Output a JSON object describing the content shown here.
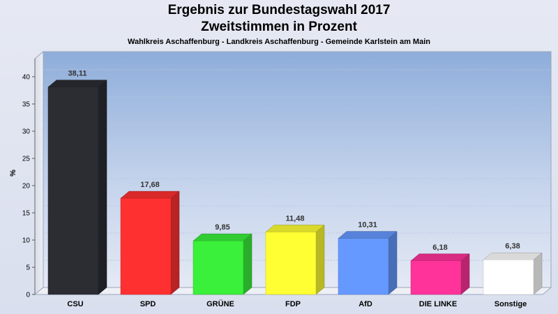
{
  "title_line1": "Ergebnis zur Bundestagswahl 2017",
  "title_line2": "Zweitstimmen in Prozent",
  "subtitle": "Wahlkreis Aschaffenburg - Landkreis Aschaffenburg - Gemeinde Karlstein am Main",
  "chart_data": {
    "type": "bar",
    "ylabel": "%",
    "ylim": [
      0,
      40
    ],
    "yticks": [
      0,
      5,
      10,
      15,
      20,
      25,
      30,
      35,
      40
    ],
    "grid": true,
    "categories": [
      "CSU",
      "SPD",
      "GRÜNE",
      "FDP",
      "AfD",
      "DIE LINKE",
      "Sonstige"
    ],
    "values": [
      38.11,
      17.68,
      9.85,
      11.48,
      10.31,
      6.18,
      6.38
    ],
    "value_labels": [
      "38,11",
      "17,68",
      "9,85",
      "11,48",
      "10,31",
      "6,18",
      "6,38"
    ],
    "colors": [
      "#2b2d33",
      "#ff3030",
      "#3af03a",
      "#ffff33",
      "#6699ff",
      "#ff3399",
      "#ffffff"
    ]
  }
}
